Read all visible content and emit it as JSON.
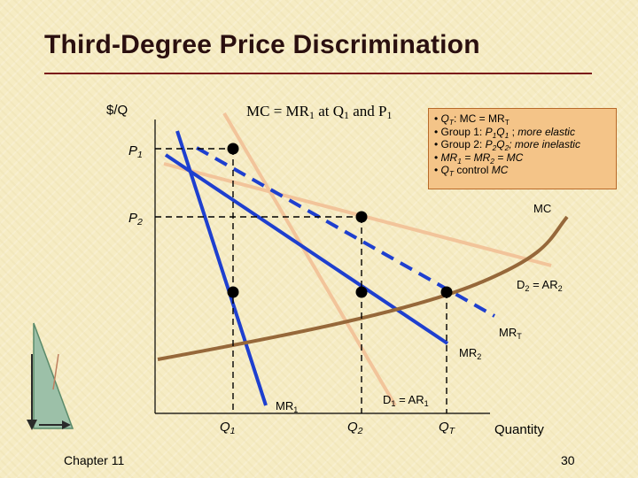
{
  "slide": {
    "title": "Third-Degree Price Discrimination",
    "footer_left": "Chapter 11",
    "page_number": "30"
  },
  "axes": {
    "y_label": "$/Q",
    "x_label": "Quantity",
    "y_ticks": [
      {
        "base": "P",
        "sub": "1"
      },
      {
        "base": "P",
        "sub": "2"
      }
    ],
    "x_ticks": [
      {
        "base": "Q",
        "sub": "1"
      },
      {
        "base": "Q",
        "sub": "2"
      },
      {
        "base": "Q",
        "sub": "T"
      }
    ]
  },
  "annotation": {
    "text": "MC = MR",
    "sub": "1",
    "rest": " at Q",
    "sub2": "1",
    "rest2": " and P",
    "sub3": "1"
  },
  "curve_labels": {
    "mc": "MC",
    "d2": {
      "base": "D",
      "sub": "2",
      "mid": " = AR",
      "sub2": "2"
    },
    "mrt": {
      "base": "MR",
      "sub": "T"
    },
    "mr2": {
      "base": "MR",
      "sub": "2"
    },
    "mr1": {
      "base": "MR",
      "sub": "1"
    },
    "d1": {
      "base": "D",
      "sub": "1",
      "mid": " = AR",
      "sub2": "1"
    }
  },
  "info_box": [
    "• Q_T: MC = MR_T",
    "• Group 1: P_1Q_1 ; more elastic",
    "• Group 2: P_2Q_2; more inelastic",
    "• MR_1 = MR_2 = MC",
    "• Q_T control MC"
  ],
  "colors": {
    "demand": "#f2c49a",
    "mr": "#1e3fcf",
    "mc": "#96683a",
    "title": "#2a0f0f",
    "rule": "#7a1a1a",
    "box": "#f4c488"
  }
}
